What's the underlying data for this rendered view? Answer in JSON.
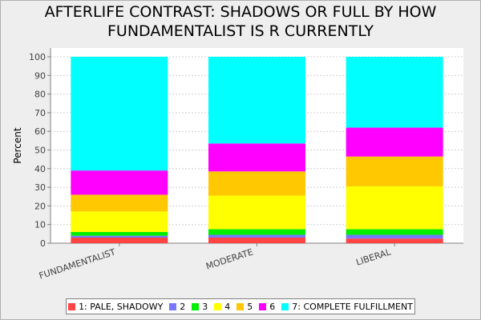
{
  "title_line1": "AFTERLIFE CONTRAST: SHADOWS OR FULL BY HOW",
  "title_line2": "FUNDAMENTALIST IS R CURRENTLY",
  "chart_data": {
    "type": "bar",
    "stacked": true,
    "title": "AFTERLIFE CONTRAST: SHADOWS OR FULL BY HOW FUNDAMENTALIST IS R CURRENTLY",
    "xlabel": "",
    "ylabel": "Percent",
    "ylim": [
      0,
      100
    ],
    "yticks": [
      0,
      10,
      20,
      30,
      40,
      50,
      60,
      70,
      80,
      90,
      100
    ],
    "grid": true,
    "legend_position": "bottom",
    "categories": [
      "FUNDAMENTALIST",
      "MODERATE",
      "LIBERAL"
    ],
    "series": [
      {
        "name": "1: PALE, SHADOWY",
        "color": "#ff4444",
        "values": [
          3.0,
          3.0,
          2.5
        ]
      },
      {
        "name": "2",
        "color": "#7777ff",
        "values": [
          1.0,
          1.5,
          2.0
        ]
      },
      {
        "name": "3",
        "color": "#00ee00",
        "values": [
          2.0,
          3.0,
          3.0
        ]
      },
      {
        "name": "4",
        "color": "#ffff00",
        "values": [
          11.0,
          18.0,
          23.0
        ]
      },
      {
        "name": "5",
        "color": "#ffc800",
        "values": [
          9.0,
          13.0,
          16.0
        ]
      },
      {
        "name": "6",
        "color": "#ff00ff",
        "values": [
          13.0,
          15.0,
          15.5
        ]
      },
      {
        "name": "7:  COMPLETE FULFILLMENT",
        "color": "#00ffff",
        "values": [
          61.0,
          46.5,
          38.0
        ]
      }
    ]
  }
}
